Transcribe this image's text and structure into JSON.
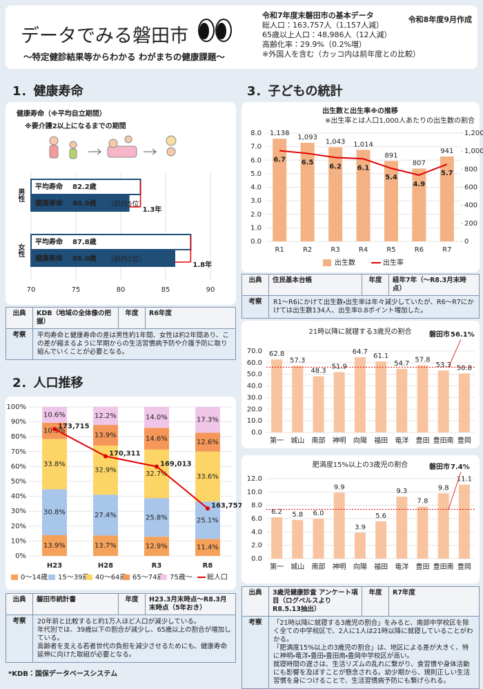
{
  "header": {
    "title": "データでみる磐田市",
    "subtitle": "～特定健診結果等からわかる わがまちの健康課題～",
    "date": "令和8年度9月作成",
    "basic_data": {
      "heading": "令和7年度末磐田市の基本データ",
      "lines": [
        "総人口：163,757人（1,157人減）",
        "65歳以上人口：48,986人（12人減）",
        "高齢化率：29.9%（0.2%増）",
        "※外国人を含む（カッコ内は前年度との比較）"
      ]
    }
  },
  "sections": [
    {
      "heading": "1．健康寿命"
    },
    {
      "heading": "2．人口推移"
    },
    {
      "heading": "3．子どもの統計"
    }
  ],
  "table_labels": {
    "source": "出典",
    "year": "年度",
    "note": "考察"
  },
  "sources": [
    {
      "source": "KDB（地域の全体像の把握）",
      "year": "R6年度",
      "note": [
        "平均寿命と健康寿命の差は男性約1年間、女性は約2年間あり、この差が縮まるように早期からの生活習慣病予防や介護予防に取り組んでいくことが必要となる。"
      ]
    },
    {
      "source": "磐田市統計書",
      "year": "H23.3月末時点～R8.3月末時点（5年おき）",
      "note": [
        "20年前と比較すると約1万人ほど人口が減少している。",
        "年代別では、39歳以下の割合が減少し、65歳以上の割合が増加している。",
        "高齢者を支える若者世代の負担を減少させるためにも、健康寿命延伸に向けた取組が必要となる。"
      ]
    },
    {
      "source": "住民基本台帳",
      "year": "経年7年（～R8.3月末時点）",
      "note": [
        "R1～R6にかけて出生数・出生率は年々減少していたが、R6～R7にかけては出生数134人、出生率0.8ポイント増加した。"
      ]
    },
    {
      "source": "3歳児健康診査 アンケート項目（ログベルスよりR8.5.13抽出）",
      "year": "R7年度",
      "note": [
        "「21時以降に就寝する3歳児の割合」をみると、南部中学校区を除く全ての中学校区で、2人に1人は21時以降に就寝していることがわかる。",
        "「肥満度15%以上の3歳児の割合」は、地区による差が大きく、特に神明・竜洋・豊田・豊田南・豊岡中学校区が高い。",
        "就寝時間の遅さは、生活リズムの乱れに繋がり、食習慣や身体活動にも影響を及ぼすことが懸念される。幼少期から、規則正しい生活習慣を身につけることで、生活習慣病予防にも繋げられる。"
      ]
    }
  ],
  "footnote": "*KDB：国保データベースシステム",
  "chart_data": [
    {
      "type": "hbar",
      "title": "健康寿命（※平均自立期間）",
      "subtitle": "※要介護2以上になるまでの期間",
      "categories": [
        "男性",
        "女性"
      ],
      "series": [
        {
          "name": "平均寿命",
          "color": "#ffffff",
          "values": [
            82.2,
            87.8
          ],
          "value_labels": [
            "82.2歳",
            "87.8歳"
          ]
        },
        {
          "name": "健康寿命",
          "color": "#1f4e79",
          "values": [
            80.9,
            86.0
          ],
          "value_labels": [
            "80.9歳",
            "86.0歳"
          ],
          "notes": [
            "（県内5位）",
            "（県内1位）"
          ]
        }
      ],
      "gaps": {
        "values": [
          1.3,
          1.8
        ],
        "value_labels": [
          "1.3年",
          "1.8年"
        ],
        "color": "#e00000"
      },
      "xlim": [
        70,
        90
      ],
      "xticks": [
        70,
        75,
        80,
        85,
        90
      ],
      "grid": true
    },
    {
      "type": "stacked",
      "categories": [
        "H23",
        "H28",
        "R3",
        "R8"
      ],
      "series": [
        {
          "name": "0～14歳",
          "color": "#f6a15a",
          "values": [
            13.9,
            13.7,
            12.9,
            11.4
          ],
          "value_labels": [
            "13.9%",
            "13.7%",
            "12.9%",
            "11.4%"
          ]
        },
        {
          "name": "15～39歳",
          "color": "#a8c5ea",
          "values": [
            30.8,
            27.4,
            25.8,
            25.1
          ],
          "value_labels": [
            "30.8%",
            "27.4%",
            "25.8%",
            "25.1%"
          ]
        },
        {
          "name": "40～64歳",
          "color": "#fdd567",
          "values": [
            33.8,
            32.9,
            32.7,
            33.6
          ],
          "value_labels": [
            "33.8%",
            "32.9%",
            "32.7%",
            "33.6%"
          ]
        },
        {
          "name": "65～74歳",
          "color": "#f59758",
          "values": [
            10.9,
            13.9,
            14.6,
            12.6
          ],
          "value_labels": [
            "10.9%",
            "13.9%",
            "14.6%",
            "12.6%"
          ]
        },
        {
          "name": "75歳～",
          "color": "#f0c6e8",
          "values": [
            10.6,
            12.2,
            14.0,
            17.3
          ],
          "value_labels": [
            "10.6%",
            "12.2%",
            "14.0%",
            "17.3%"
          ]
        },
        {
          "name": "総人口",
          "color": "#e00000",
          "type": "line",
          "axis": "y2",
          "values": [
            173715,
            170311,
            169013,
            163757
          ],
          "value_labels": [
            "173,715",
            "170,311",
            "169,013",
            "163,757"
          ]
        }
      ],
      "ylim": [
        0,
        100
      ],
      "yticks": [
        {
          "value": 0,
          "label": "0%"
        },
        {
          "value": 10,
          "label": "10%"
        },
        {
          "value": 20,
          "label": "20%"
        },
        {
          "value": 30,
          "label": "30%"
        },
        {
          "value": 40,
          "label": "40%"
        },
        {
          "value": 50,
          "label": "50%"
        },
        {
          "value": 60,
          "label": "60%"
        },
        {
          "value": 70,
          "label": "70%"
        },
        {
          "value": 80,
          "label": "80%"
        },
        {
          "value": 90,
          "label": "90%"
        },
        {
          "value": 100,
          "label": "100%"
        }
      ],
      "y2lim": [
        157800,
        176500
      ],
      "grid": true
    },
    {
      "type": "combo",
      "title": "出生数と出生率※の推移",
      "subtitle": "※出生率とは人口1,000人あたりの出生数の割合",
      "categories": [
        "R1",
        "R2",
        "R3",
        "R4",
        "R5",
        "R6",
        "R7"
      ],
      "series": [
        {
          "name": "出生数",
          "color": "#f4b183",
          "axis": "y2",
          "values": [
            1138,
            1093,
            1043,
            1014,
            891,
            807,
            941
          ],
          "value_labels": [
            "1,138",
            "1,093",
            "1,043",
            "1,014",
            "891",
            "807",
            "941"
          ]
        },
        {
          "name": "出生率",
          "color": "#e00000",
          "type": "line",
          "values": [
            6.7,
            6.5,
            6.2,
            6.1,
            5.4,
            4.9,
            5.7
          ]
        }
      ],
      "ylim": [
        0,
        8
      ],
      "yticks": [
        {
          "value": 0,
          "label": "0.0"
        },
        {
          "value": 1,
          "label": "1.0"
        },
        {
          "value": 2,
          "label": "2.0"
        },
        {
          "value": 3,
          "label": "3.0"
        },
        {
          "value": 4,
          "label": "4.0"
        },
        {
          "value": 5,
          "label": "5.0"
        },
        {
          "value": 6,
          "label": "6.0"
        },
        {
          "value": 7,
          "label": "7.0"
        },
        {
          "value": 8,
          "label": "8.0"
        }
      ],
      "y2lim": [
        0,
        1200
      ],
      "y2ticks": [
        0,
        200,
        400,
        600,
        800,
        {
          "value": 1000,
          "label": "1,000"
        },
        {
          "value": 1200,
          "label": "1,200"
        }
      ],
      "grid": true
    },
    {
      "type": "bar",
      "title": "21時以降に就寝する3歳児の割合",
      "categories": [
        "第一",
        "城山",
        "南部",
        "神明",
        "向陽",
        "福田",
        "竜洋",
        "豊田",
        "豊田南",
        "豊岡"
      ],
      "values": [
        62.8,
        57.3,
        48.3,
        51.9,
        64.7,
        61.1,
        54.7,
        57.8,
        53.3,
        50.8
      ],
      "color": "#f8c4a0",
      "reference": {
        "label": "磐田市",
        "value": 56.1,
        "value_label": "56.1%",
        "color": "#e00000"
      },
      "ylim": [
        0,
        70
      ],
      "yticks": [
        {
          "value": 0,
          "label": "0.0"
        },
        {
          "value": 10,
          "label": "10.0"
        },
        {
          "value": 20,
          "label": "20.0"
        },
        {
          "value": 30,
          "label": "30.0"
        },
        {
          "value": 40,
          "label": "40.0"
        },
        {
          "value": 50,
          "label": "50.0"
        },
        {
          "value": 60,
          "label": "60.0"
        },
        {
          "value": 70,
          "label": "70.0"
        }
      ],
      "grid": true
    },
    {
      "type": "bar",
      "title": "肥満度15%以上の3歳児の割合",
      "categories": [
        "第一",
        "城山",
        "南部",
        "神明",
        "向陽",
        "福田",
        "竜洋",
        "豊田",
        "豊田南",
        "豊岡"
      ],
      "values": [
        6.2,
        5.8,
        6.0,
        9.9,
        3.9,
        5.6,
        9.3,
        7.8,
        9.8,
        11.1
      ],
      "value_labels": [
        "6.2",
        "5.8",
        "6.0",
        "9.9",
        "3.9",
        "5.6",
        "9.3",
        "7.8",
        "9.8",
        "11.1"
      ],
      "color": "#f8c4a0",
      "reference": {
        "label": "磐田市",
        "value": 7.4,
        "value_label": "7.4%",
        "color": "#e00000"
      },
      "ylim": [
        0,
        12
      ],
      "yticks": [
        {
          "value": 0,
          "label": "0.0"
        },
        {
          "value": 2,
          "label": "2.0"
        },
        {
          "value": 4,
          "label": "4.0"
        },
        {
          "value": 6,
          "label": "6.0"
        },
        {
          "value": 8,
          "label": "8.0"
        },
        {
          "value": 10,
          "label": "10.0"
        },
        {
          "value": 12,
          "label": "12.0"
        }
      ],
      "grid": true
    }
  ]
}
